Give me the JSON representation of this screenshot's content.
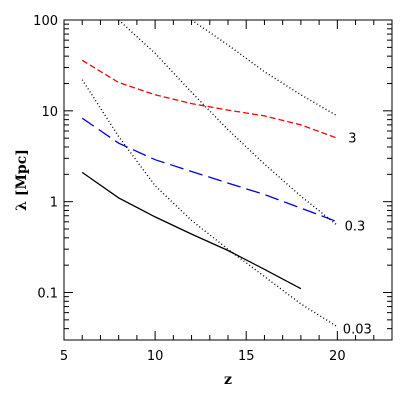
{
  "chart_data": {
    "type": "line",
    "xlabel": "z",
    "ylabel": "λ [Mpc]",
    "xlim": [
      5,
      23
    ],
    "ylim": [
      0.03,
      100
    ],
    "yscale": "log",
    "x_ticks": [
      5,
      10,
      15,
      20
    ],
    "y_ticks": [
      0.1,
      1,
      10,
      100
    ],
    "y_tick_labels": [
      "0.1",
      "1",
      "10",
      "100"
    ],
    "grid": false,
    "legend": "none",
    "series": [
      {
        "style": "solid",
        "color": "#000000",
        "x": [
          6,
          8,
          10,
          12,
          14,
          16,
          18
        ],
        "y": [
          2.1,
          1.1,
          0.68,
          0.44,
          0.29,
          0.18,
          0.11
        ]
      },
      {
        "style": "long-dash",
        "color": "#0000dd",
        "x": [
          6,
          8,
          10,
          12,
          14,
          16,
          18,
          20
        ],
        "y": [
          8.3,
          4.4,
          2.9,
          2.15,
          1.6,
          1.2,
          0.85,
          0.6
        ]
      },
      {
        "style": "short-dash",
        "color": "#ff0000",
        "x": [
          6,
          8,
          10,
          12,
          14,
          16,
          18,
          20
        ],
        "y": [
          36,
          20.5,
          15,
          12,
          10.2,
          8.8,
          7,
          5
        ]
      },
      {
        "style": "dotted",
        "color": "#000000",
        "x": [
          6,
          8,
          10,
          12,
          14,
          16,
          18,
          20
        ],
        "y": [
          22,
          5.2,
          1.5,
          0.62,
          0.3,
          0.15,
          0.075,
          0.042
        ]
      },
      {
        "style": "dotted",
        "color": "#000000",
        "x": [
          8,
          10,
          12,
          14,
          16,
          18,
          20
        ],
        "y": [
          100,
          43,
          16,
          6.2,
          2.6,
          1.15,
          0.55
        ]
      },
      {
        "style": "dotted",
        "color": "#000000",
        "x": [
          12,
          14,
          16,
          18,
          20
        ],
        "y": [
          100,
          53,
          27,
          15,
          8.8
        ]
      }
    ],
    "annotations": [
      {
        "text": "3",
        "x": 20.6,
        "y": 5.1
      },
      {
        "text": "0.3",
        "x": 20.4,
        "y": 0.55
      },
      {
        "text": "0.03",
        "x": 20.3,
        "y": 0.04
      }
    ]
  }
}
